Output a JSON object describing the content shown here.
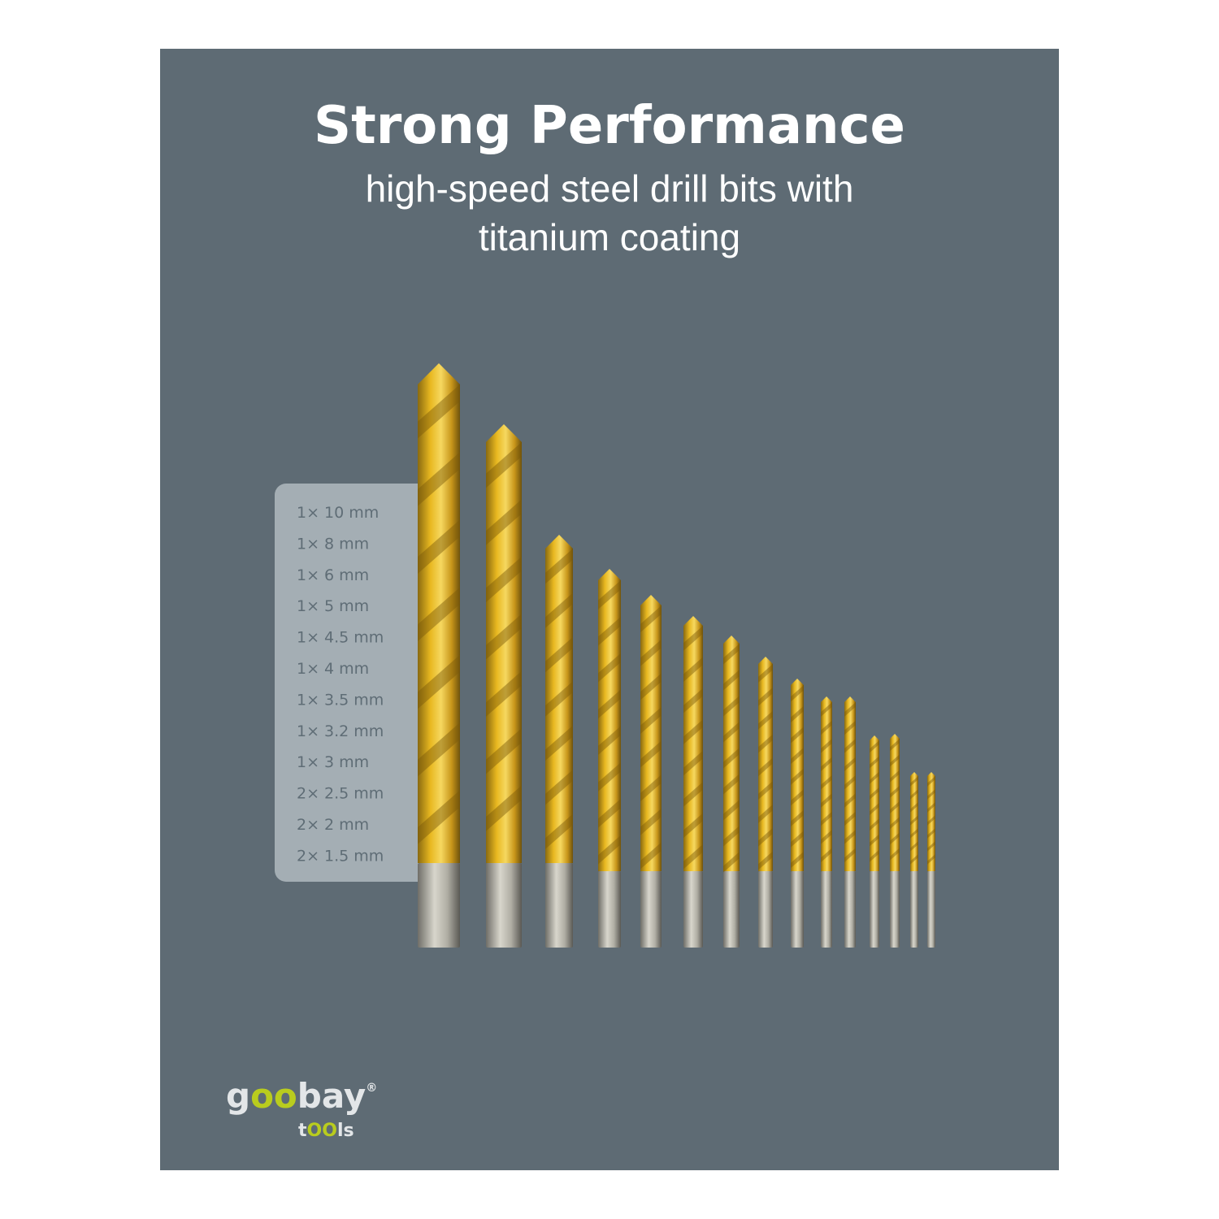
{
  "header": {
    "title": "Strong Performance",
    "subtitle_lines": [
      "high-speed steel drill bits with",
      "titanium coating"
    ]
  },
  "sizes": [
    "1× 10 mm",
    "1× 8 mm",
    "1× 6 mm",
    "1× 5 mm",
    "1× 4.5 mm",
    "1× 4 mm",
    "1× 3.5 mm",
    "1× 3.2 mm",
    "1× 3 mm",
    "2× 2.5 mm",
    "2× 2 mm",
    "2× 1.5 mm"
  ],
  "logo": {
    "brand": [
      "g",
      "oo",
      "bay"
    ],
    "registered": "®",
    "sub": [
      "t",
      "OO",
      "ls"
    ]
  }
}
